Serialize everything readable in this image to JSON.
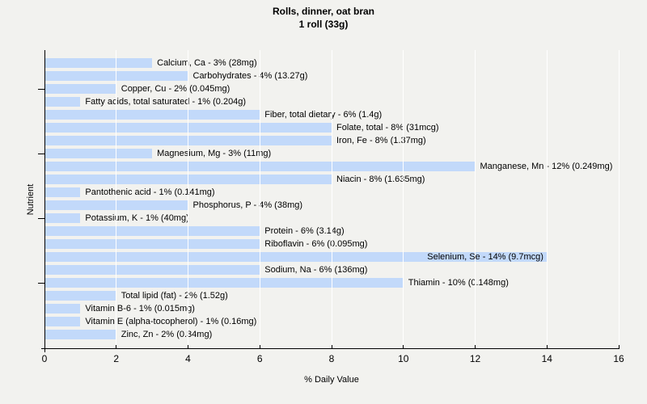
{
  "page": {
    "background": "#f2f2ef"
  },
  "chart_data": {
    "type": "bar",
    "orientation": "horizontal",
    "title": "Rolls, dinner, oat bran",
    "subtitle": "1 roll (33g)",
    "xlabel": "% Daily Value",
    "ylabel": "Nutrient",
    "xlim": [
      0,
      16
    ],
    "xticks": [
      "0",
      "2",
      "4",
      "6",
      "8",
      "10",
      "12",
      "14",
      "16"
    ],
    "grid": "vertical-gridlines-on",
    "legend": "none",
    "ytick_rows": [
      3,
      8,
      13,
      18
    ],
    "colors": {
      "bar": "#c2d9fa",
      "gridline": "#ffffff",
      "axis": "#000000",
      "text": "#000000",
      "background": "#f2f2ef"
    },
    "series": [
      {
        "nutrient": "Calcium, Ca",
        "pct": 3,
        "amount": "28mg",
        "label": "Calcium, Ca - 3% (28mg)"
      },
      {
        "nutrient": "Carbohydrates",
        "pct": 4,
        "amount": "13.27g",
        "label": "Carbohydrates - 4% (13.27g)"
      },
      {
        "nutrient": "Copper, Cu",
        "pct": 2,
        "amount": "0.045mg",
        "label": "Copper, Cu - 2% (0.045mg)"
      },
      {
        "nutrient": "Fatty acids, total saturated",
        "pct": 1,
        "amount": "0.204g",
        "label": "Fatty acids, total saturated - 1% (0.204g)"
      },
      {
        "nutrient": "Fiber, total dietary",
        "pct": 6,
        "amount": "1.4g",
        "label": "Fiber, total dietary - 6% (1.4g)"
      },
      {
        "nutrient": "Folate, total",
        "pct": 8,
        "amount": "31mcg",
        "label": "Folate, total - 8% (31mcg)"
      },
      {
        "nutrient": "Iron, Fe",
        "pct": 8,
        "amount": "1.37mg",
        "label": "Iron, Fe - 8% (1.37mg)"
      },
      {
        "nutrient": "Magnesium, Mg",
        "pct": 3,
        "amount": "11mg",
        "label": "Magnesium, Mg - 3% (11mg)"
      },
      {
        "nutrient": "Manganese, Mn",
        "pct": 12,
        "amount": "0.249mg",
        "label": "Manganese, Mn - 12% (0.249mg)"
      },
      {
        "nutrient": "Niacin",
        "pct": 8,
        "amount": "1.635mg",
        "label": "Niacin - 8% (1.635mg)"
      },
      {
        "nutrient": "Pantothenic acid",
        "pct": 1,
        "amount": "0.141mg",
        "label": "Pantothenic acid - 1% (0.141mg)"
      },
      {
        "nutrient": "Phosphorus, P",
        "pct": 4,
        "amount": "38mg",
        "label": "Phosphorus, P - 4% (38mg)"
      },
      {
        "nutrient": "Potassium, K",
        "pct": 1,
        "amount": "40mg",
        "label": "Potassium, K - 1% (40mg)"
      },
      {
        "nutrient": "Protein",
        "pct": 6,
        "amount": "3.14g",
        "label": "Protein - 6% (3.14g)"
      },
      {
        "nutrient": "Riboflavin",
        "pct": 6,
        "amount": "0.095mg",
        "label": "Riboflavin - 6% (0.095mg)"
      },
      {
        "nutrient": "Selenium, Se",
        "pct": 14,
        "amount": "9.7mcg",
        "label": "Selenium, Se - 14% (9.7mcg)"
      },
      {
        "nutrient": "Sodium, Na",
        "pct": 6,
        "amount": "136mg",
        "label": "Sodium, Na - 6% (136mg)"
      },
      {
        "nutrient": "Thiamin",
        "pct": 10,
        "amount": "0.148mg",
        "label": "Thiamin - 10% (0.148mg)"
      },
      {
        "nutrient": "Total lipid (fat)",
        "pct": 2,
        "amount": "1.52g",
        "label": "Total lipid (fat) - 2% (1.52g)"
      },
      {
        "nutrient": "Vitamin B-6",
        "pct": 1,
        "amount": "0.015mg",
        "label": "Vitamin B-6 - 1% (0.015mg)"
      },
      {
        "nutrient": "Vitamin E (alpha-tocopherol)",
        "pct": 1,
        "amount": "0.16mg",
        "label": "Vitamin E (alpha-tocopherol) - 1% (0.16mg)"
      },
      {
        "nutrient": "Zinc, Zn",
        "pct": 2,
        "amount": "0.34mg",
        "label": "Zinc, Zn - 2% (0.34mg)"
      }
    ]
  }
}
